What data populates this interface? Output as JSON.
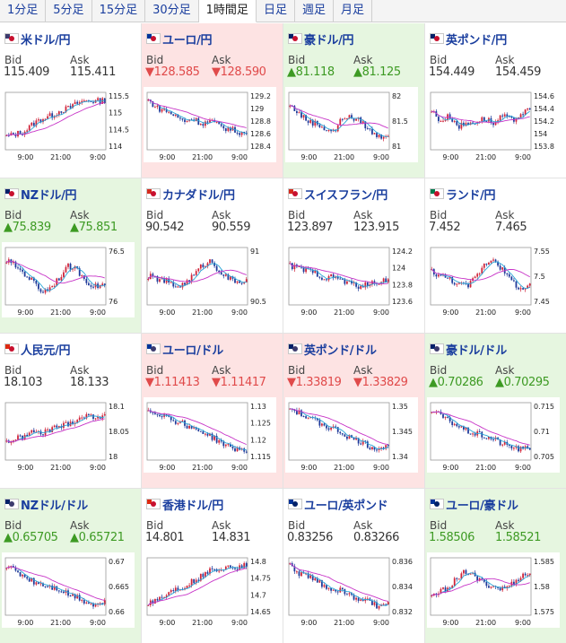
{
  "tabs": [
    {
      "label": "1分足"
    },
    {
      "label": "5分足"
    },
    {
      "label": "15分足"
    },
    {
      "label": "30分足"
    },
    {
      "label": "1時間足",
      "active": true
    },
    {
      "label": "日足"
    },
    {
      "label": "週足"
    },
    {
      "label": "月足"
    }
  ],
  "cards": [
    {
      "pair": "米ドル/円",
      "bid": "115.409",
      "ask": "115.411",
      "dir": "flat",
      "yticks": [
        "115.5",
        "115",
        "114.5",
        "114"
      ],
      "xticks": [
        "9:00",
        "21:00",
        "9:00"
      ],
      "flag": "#c8102e",
      "flag2": "#3c3b6e",
      "trend": [
        0.2,
        0.25,
        0.3,
        0.45,
        0.55,
        0.6,
        0.7,
        0.75,
        0.85,
        0.9,
        0.88,
        0.9
      ]
    },
    {
      "pair": "ユーロ/円",
      "bid": "▼128.585",
      "ask": "▼128.590",
      "dir": "down",
      "yticks": [
        "129.2",
        "129",
        "128.8",
        "128.6",
        "128.4"
      ],
      "xticks": [
        "9:00",
        "21:00",
        "9:00"
      ],
      "flag": "#c8102e",
      "flag2": "#003399",
      "trend": [
        0.9,
        0.75,
        0.7,
        0.6,
        0.5,
        0.55,
        0.45,
        0.5,
        0.4,
        0.35,
        0.3,
        0.25
      ]
    },
    {
      "pair": "豪ドル/円",
      "bid": "▲81.118",
      "ask": "▲81.125",
      "dir": "up",
      "yticks": [
        "82",
        "81.5",
        "81"
      ],
      "xticks": [
        "9:00",
        "21:00",
        "9:00"
      ],
      "flag": "#c8102e",
      "flag2": "#012169",
      "trend": [
        0.8,
        0.65,
        0.5,
        0.45,
        0.35,
        0.3,
        0.6,
        0.55,
        0.5,
        0.3,
        0.2,
        0.25
      ]
    },
    {
      "pair": "英ポンド/円",
      "bid": "154.449",
      "ask": "154.459",
      "dir": "flat",
      "yticks": [
        "154.6",
        "154.4",
        "154.2",
        "154",
        "153.8"
      ],
      "xticks": [
        "9:00",
        "21:00",
        "9:00"
      ],
      "flag": "#c8102e",
      "flag2": "#012169",
      "trend": [
        0.7,
        0.5,
        0.6,
        0.4,
        0.45,
        0.5,
        0.55,
        0.45,
        0.6,
        0.5,
        0.65,
        0.7
      ]
    },
    {
      "pair": "NZドル/円",
      "bid": "▲75.839",
      "ask": "▲75.851",
      "dir": "up",
      "yticks": [
        "76.5",
        "76"
      ],
      "xticks": [
        "9:00",
        "21:00",
        "9:00"
      ],
      "flag": "#c8102e",
      "flag2": "#012169",
      "trend": [
        0.8,
        0.7,
        0.55,
        0.4,
        0.2,
        0.3,
        0.5,
        0.7,
        0.6,
        0.4,
        0.3,
        0.35
      ]
    },
    {
      "pair": "カナダドル/円",
      "bid": "90.542",
      "ask": "90.559",
      "dir": "flat",
      "yticks": [
        "91",
        "90.5"
      ],
      "xticks": [
        "9:00",
        "21:00",
        "9:00"
      ],
      "flag": "#c8102e",
      "flag2": "#d52b1e",
      "trend": [
        0.5,
        0.45,
        0.4,
        0.3,
        0.35,
        0.5,
        0.7,
        0.8,
        0.6,
        0.45,
        0.4,
        0.4
      ]
    },
    {
      "pair": "スイスフラン/円",
      "bid": "123.897",
      "ask": "123.915",
      "dir": "flat",
      "yticks": [
        "124.2",
        "124",
        "123.8",
        "123.6"
      ],
      "xticks": [
        "9:00",
        "21:00",
        "9:00"
      ],
      "flag": "#c8102e",
      "flag2": "#d52b1e",
      "trend": [
        0.7,
        0.65,
        0.6,
        0.55,
        0.45,
        0.5,
        0.4,
        0.35,
        0.3,
        0.35,
        0.4,
        0.45
      ]
    },
    {
      "pair": "ランド/円",
      "bid": "7.452",
      "ask": "7.465",
      "dir": "flat",
      "yticks": [
        "7.55",
        "7.5",
        "7.45"
      ],
      "xticks": [
        "9:00",
        "21:00",
        "9:00"
      ],
      "flag": "#c8102e",
      "flag2": "#007a4d",
      "trend": [
        0.6,
        0.5,
        0.45,
        0.35,
        0.3,
        0.5,
        0.75,
        0.85,
        0.6,
        0.4,
        0.25,
        0.3
      ]
    },
    {
      "pair": "人民元/円",
      "bid": "18.103",
      "ask": "18.133",
      "dir": "flat",
      "yticks": [
        "18.1",
        "18.05",
        "18"
      ],
      "xticks": [
        "9:00",
        "21:00",
        "9:00"
      ],
      "flag": "#c8102e",
      "flag2": "#de2910",
      "trend": [
        0.3,
        0.35,
        0.4,
        0.5,
        0.45,
        0.55,
        0.6,
        0.65,
        0.75,
        0.8,
        0.78,
        0.82
      ]
    },
    {
      "pair": "ユーロ/ドル",
      "bid": "▼1.11413",
      "ask": "▼1.11417",
      "dir": "down",
      "yticks": [
        "1.13",
        "1.125",
        "1.12",
        "1.115"
      ],
      "xticks": [
        "9:00",
        "21:00",
        "9:00"
      ],
      "flag": "#3c3b6e",
      "flag2": "#003399",
      "trend": [
        0.9,
        0.85,
        0.8,
        0.7,
        0.65,
        0.55,
        0.5,
        0.4,
        0.3,
        0.2,
        0.15,
        0.15
      ]
    },
    {
      "pair": "英ポンド/ドル",
      "bid": "▼1.33819",
      "ask": "▼1.33829",
      "dir": "down",
      "yticks": [
        "1.35",
        "1.345",
        "1.34"
      ],
      "xticks": [
        "9:00",
        "21:00",
        "9:00"
      ],
      "flag": "#3c3b6e",
      "flag2": "#012169",
      "trend": [
        0.95,
        0.85,
        0.75,
        0.7,
        0.6,
        0.55,
        0.45,
        0.35,
        0.3,
        0.2,
        0.18,
        0.2
      ]
    },
    {
      "pair": "豪ドル/ドル",
      "bid": "▲0.70286",
      "ask": "▲0.70295",
      "dir": "up",
      "yticks": [
        "0.715",
        "0.71",
        "0.705"
      ],
      "xticks": [
        "9:00",
        "21:00",
        "9:00"
      ],
      "flag": "#3c3b6e",
      "flag2": "#012169",
      "trend": [
        0.9,
        0.8,
        0.7,
        0.6,
        0.5,
        0.45,
        0.4,
        0.35,
        0.25,
        0.2,
        0.15,
        0.18
      ]
    },
    {
      "pair": "NZドル/ドル",
      "bid": "▲0.65705",
      "ask": "▲0.65721",
      "dir": "up",
      "yticks": [
        "0.67",
        "0.665",
        "0.66"
      ],
      "xticks": [
        "9:00",
        "21:00",
        "9:00"
      ],
      "flag": "#3c3b6e",
      "flag2": "#012169",
      "trend": [
        0.9,
        0.8,
        0.7,
        0.6,
        0.55,
        0.5,
        0.45,
        0.35,
        0.3,
        0.2,
        0.15,
        0.2
      ]
    },
    {
      "pair": "香港ドル/円",
      "bid": "14.801",
      "ask": "14.831",
      "dir": "flat",
      "yticks": [
        "14.8",
        "14.75",
        "14.7",
        "14.65"
      ],
      "xticks": [
        "9:00",
        "21:00",
        "9:00"
      ],
      "flag": "#c8102e",
      "flag2": "#de2910",
      "trend": [
        0.2,
        0.25,
        0.35,
        0.45,
        0.5,
        0.6,
        0.7,
        0.8,
        0.85,
        0.9,
        0.88,
        0.9
      ]
    },
    {
      "pair": "ユーロ/英ポンド",
      "bid": "0.83256",
      "ask": "0.83266",
      "dir": "flat",
      "yticks": [
        "0.836",
        "0.834",
        "0.832"
      ],
      "xticks": [
        "9:00",
        "21:00",
        "9:00"
      ],
      "flag": "#012169",
      "flag2": "#003399",
      "trend": [
        0.9,
        0.75,
        0.7,
        0.6,
        0.5,
        0.45,
        0.4,
        0.3,
        0.25,
        0.2,
        0.1,
        0.15
      ]
    },
    {
      "pair": "ユーロ/豪ドル",
      "bid": "1.58506",
      "ask": "1.58521",
      "dir": "up",
      "yticks": [
        "1.585",
        "1.58",
        "1.575"
      ],
      "xticks": [
        "9:00",
        "21:00",
        "9:00"
      ],
      "flag": "#012169",
      "flag2": "#003399",
      "trend": [
        0.3,
        0.4,
        0.5,
        0.7,
        0.8,
        0.65,
        0.55,
        0.5,
        0.45,
        0.55,
        0.7,
        0.75
      ]
    }
  ],
  "labels": {
    "bid": "Bid",
    "ask": "Ask"
  },
  "colors": {
    "up_bg": "#e6f6e0",
    "down_bg": "#fde3e3",
    "candle_up": "#d0243a",
    "candle_down": "#1f3a9a",
    "ma_fast": "#2aa5d6",
    "ma_slow": "#c733c7"
  }
}
